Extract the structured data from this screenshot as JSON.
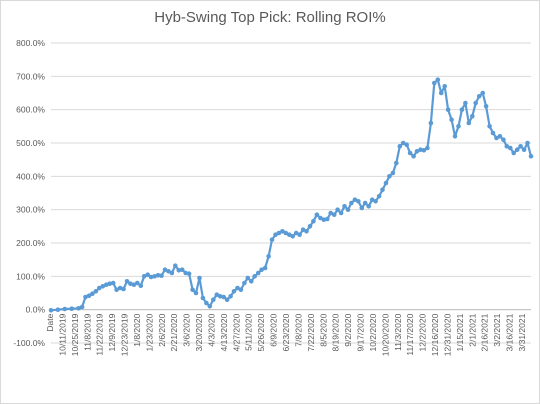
{
  "chart_data": {
    "type": "line",
    "title": "Hyb-Swing Top Pick: Rolling ROI%",
    "xlabel": "",
    "ylabel": "",
    "ylim": [
      -100,
      800
    ],
    "y_ticks": [
      "-100.0%",
      "0.0%",
      "100.0%",
      "200.0%",
      "300.0%",
      "400.0%",
      "500.0%",
      "600.0%",
      "700.0%",
      "800.0%"
    ],
    "y_tick_values": [
      -100,
      0,
      100,
      200,
      300,
      400,
      500,
      600,
      700,
      800
    ],
    "x_tick_labels": [
      "Date",
      "10/11/2019",
      "10/25/2019",
      "11/8/2019",
      "11/22/2019",
      "12/9/2019",
      "12/23/2019",
      "1/8/2020",
      "1/23/2020",
      "2/6/2020",
      "2/21/2020",
      "3/6/2020",
      "3/20/2020",
      "4/3/2020",
      "4/13/2020",
      "4/27/2020",
      "5/11/2020",
      "5/26/2020",
      "6/9/2020",
      "6/23/2020",
      "7/8/2020",
      "7/22/2020",
      "8/5/2020",
      "8/19/2020",
      "9/2/2020",
      "9/17/2020",
      "10/2/2020",
      "10/20/2020",
      "11/3/2020",
      "11/17/2020",
      "12/2/2020",
      "12/16/2020",
      "12/31/2020",
      "1/15/2021",
      "2/1/2021",
      "2/16/2021",
      "3/2/2021",
      "3/16/2021",
      "3/31/2021"
    ],
    "grid": true,
    "legend": "none",
    "series_color": "#5b9bd5",
    "series": [
      {
        "values": [
          [
            0,
            -2
          ],
          [
            2,
            0
          ],
          [
            4,
            2
          ],
          [
            6,
            3
          ],
          [
            8,
            4
          ],
          [
            9,
            8
          ],
          [
            10,
            38
          ],
          [
            11,
            42
          ],
          [
            12,
            48
          ],
          [
            13,
            55
          ],
          [
            14,
            65
          ],
          [
            15,
            70
          ],
          [
            16,
            75
          ],
          [
            17,
            78
          ],
          [
            18,
            80
          ],
          [
            19,
            60
          ],
          [
            20,
            65
          ],
          [
            21,
            62
          ],
          [
            22,
            85
          ],
          [
            23,
            78
          ],
          [
            24,
            75
          ],
          [
            25,
            80
          ],
          [
            26,
            72
          ],
          [
            27,
            100
          ],
          [
            28,
            105
          ],
          [
            29,
            98
          ],
          [
            30,
            100
          ],
          [
            31,
            103
          ],
          [
            32,
            102
          ],
          [
            33,
            120
          ],
          [
            34,
            115
          ],
          [
            35,
            110
          ],
          [
            36,
            132
          ],
          [
            37,
            118
          ],
          [
            38,
            120
          ],
          [
            39,
            110
          ],
          [
            40,
            108
          ],
          [
            41,
            60
          ],
          [
            42,
            50
          ],
          [
            43,
            95
          ],
          [
            44,
            35
          ],
          [
            45,
            20
          ],
          [
            46,
            10
          ],
          [
            47,
            30
          ],
          [
            48,
            45
          ],
          [
            49,
            40
          ],
          [
            50,
            38
          ],
          [
            51,
            30
          ],
          [
            52,
            40
          ],
          [
            53,
            55
          ],
          [
            54,
            65
          ],
          [
            55,
            60
          ],
          [
            56,
            80
          ],
          [
            57,
            95
          ],
          [
            58,
            85
          ],
          [
            59,
            100
          ],
          [
            60,
            110
          ],
          [
            61,
            120
          ],
          [
            62,
            125
          ],
          [
            63,
            160
          ],
          [
            64,
            210
          ],
          [
            65,
            225
          ],
          [
            66,
            230
          ],
          [
            67,
            235
          ],
          [
            68,
            230
          ],
          [
            69,
            225
          ],
          [
            70,
            220
          ],
          [
            71,
            230
          ],
          [
            72,
            225
          ],
          [
            73,
            240
          ],
          [
            74,
            235
          ],
          [
            75,
            250
          ],
          [
            76,
            265
          ],
          [
            77,
            285
          ],
          [
            78,
            275
          ],
          [
            79,
            270
          ],
          [
            80,
            272
          ],
          [
            81,
            290
          ],
          [
            82,
            285
          ],
          [
            83,
            300
          ],
          [
            84,
            290
          ],
          [
            85,
            310
          ],
          [
            86,
            300
          ],
          [
            87,
            320
          ],
          [
            88,
            330
          ],
          [
            89,
            325
          ],
          [
            90,
            305
          ],
          [
            91,
            320
          ],
          [
            92,
            310
          ],
          [
            93,
            330
          ],
          [
            94,
            325
          ],
          [
            95,
            340
          ],
          [
            96,
            360
          ],
          [
            97,
            380
          ],
          [
            98,
            400
          ],
          [
            99,
            410
          ],
          [
            100,
            440
          ],
          [
            101,
            490
          ],
          [
            102,
            500
          ],
          [
            103,
            495
          ],
          [
            104,
            470
          ],
          [
            105,
            460
          ],
          [
            106,
            475
          ],
          [
            107,
            480
          ],
          [
            108,
            478
          ],
          [
            109,
            485
          ],
          [
            110,
            560
          ],
          [
            111,
            680
          ],
          [
            112,
            690
          ],
          [
            113,
            650
          ],
          [
            114,
            670
          ],
          [
            115,
            600
          ],
          [
            116,
            570
          ],
          [
            117,
            520
          ],
          [
            118,
            550
          ],
          [
            119,
            600
          ],
          [
            120,
            620
          ],
          [
            121,
            560
          ],
          [
            122,
            580
          ],
          [
            123,
            620
          ],
          [
            124,
            640
          ],
          [
            125,
            650
          ],
          [
            126,
            610
          ],
          [
            127,
            550
          ],
          [
            128,
            530
          ],
          [
            129,
            515
          ],
          [
            130,
            520
          ],
          [
            131,
            510
          ],
          [
            132,
            490
          ],
          [
            133,
            485
          ],
          [
            134,
            470
          ],
          [
            135,
            480
          ],
          [
            136,
            490
          ],
          [
            137,
            480
          ],
          [
            138,
            500
          ],
          [
            139,
            460
          ]
        ]
      }
    ]
  }
}
